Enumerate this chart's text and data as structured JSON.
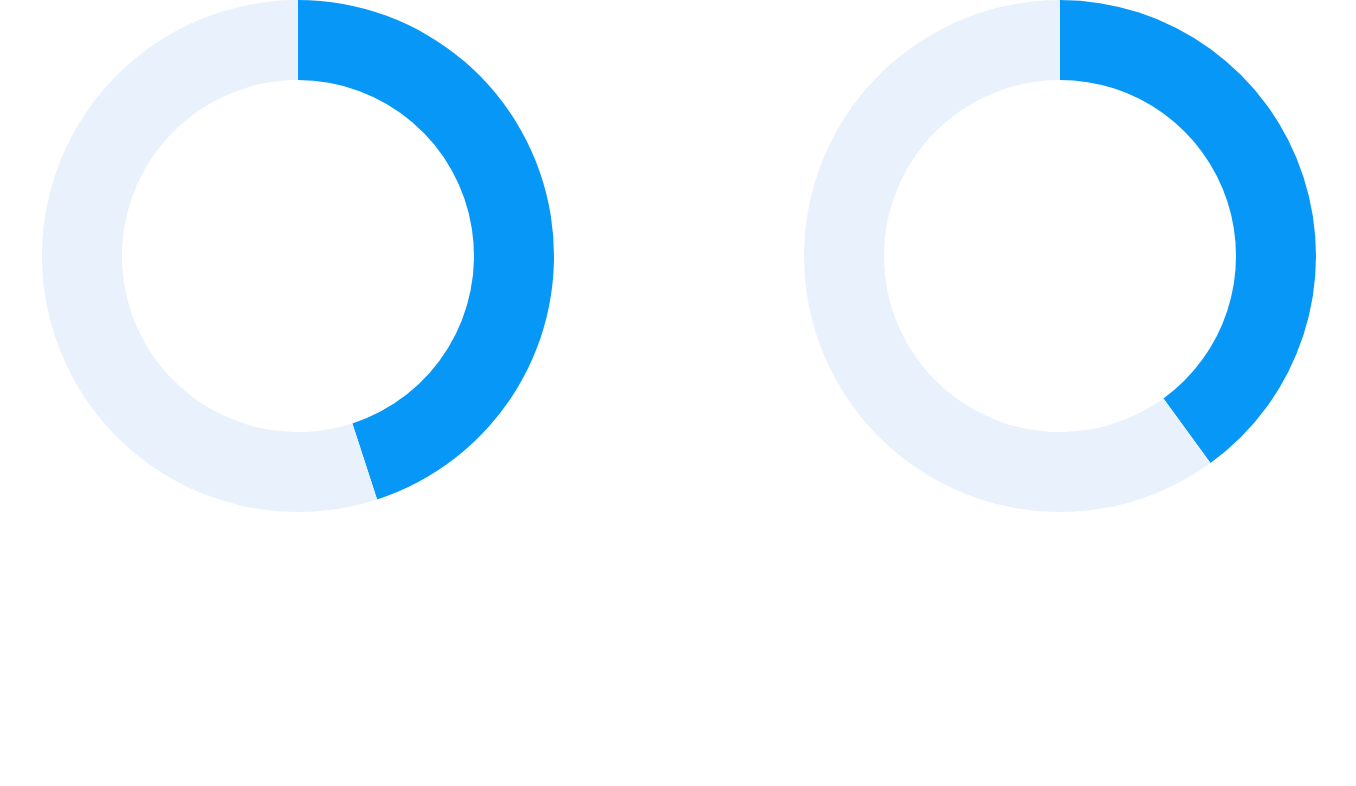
{
  "chart_data": [
    {
      "type": "donut",
      "categories": [
        null,
        null
      ],
      "values": [
        45,
        55
      ],
      "colors": [
        "#0797f7",
        "#e9f2fc"
      ]
    },
    {
      "type": "donut",
      "categories": [
        null,
        null
      ],
      "values": [
        40,
        60
      ],
      "colors": [
        "#0797f7",
        "#e9f2fc"
      ]
    }
  ]
}
